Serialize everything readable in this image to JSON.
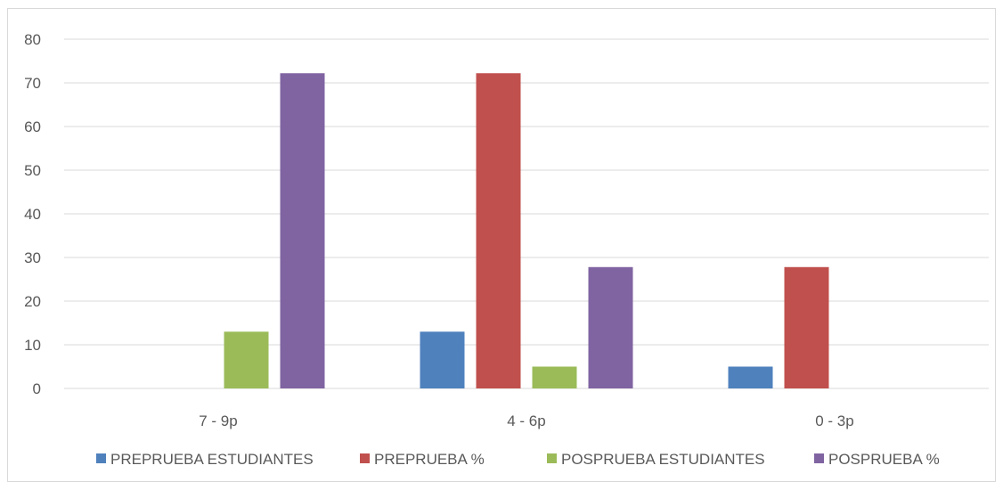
{
  "chart_data": {
    "type": "bar",
    "categories": [
      "7 - 9p",
      "4 - 6p",
      "0 - 3p"
    ],
    "series": [
      {
        "name": "PREPRUEBA ESTUDIANTES",
        "values": [
          0,
          13,
          5
        ],
        "color": "#4f81bd"
      },
      {
        "name": "PREPRUEBA %",
        "values": [
          0,
          72.2,
          27.8
        ],
        "color": "#c0504d"
      },
      {
        "name": "POSPRUEBA ESTUDIANTES",
        "values": [
          13,
          5,
          0
        ],
        "color": "#9bbb59"
      },
      {
        "name": "POSPRUEBA %",
        "values": [
          72.2,
          27.8,
          0
        ],
        "color": "#8064a2"
      }
    ],
    "yticks": [
      "0",
      "10",
      "20",
      "30",
      "40",
      "50",
      "60",
      "70",
      "80"
    ],
    "ylim": [
      0,
      80
    ],
    "grid": true,
    "legend": "bottom",
    "title": "",
    "xlabel": "",
    "ylabel": ""
  }
}
